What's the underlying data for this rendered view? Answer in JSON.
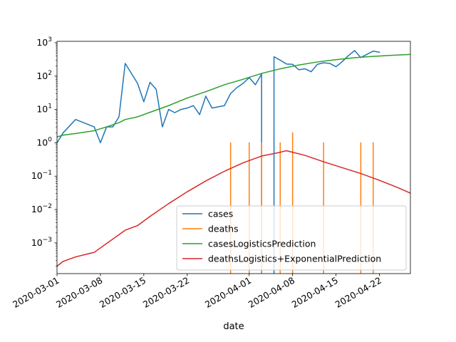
{
  "chart_data": {
    "type": "line",
    "xlabel": "date",
    "ylabel": "",
    "yscale": "log",
    "xlim": [
      "2020-03-01",
      "2020-04-27"
    ],
    "ylim": [
      0.00012,
      1100
    ],
    "x_ticks": [
      "2020-03-01",
      "2020-03-08",
      "2020-03-15",
      "2020-03-22",
      "2020-04-01",
      "2020-04-08",
      "2020-04-15",
      "2020-04-22"
    ],
    "y_ticks": [
      {
        "value": 0.001,
        "base": "10",
        "exp": "−3"
      },
      {
        "value": 0.01,
        "base": "10",
        "exp": "−2"
      },
      {
        "value": 0.1,
        "base": "10",
        "exp": "−1"
      },
      {
        "value": 1,
        "base": "10",
        "exp": "0"
      },
      {
        "value": 10,
        "base": "10",
        "exp": "1"
      },
      {
        "value": 100,
        "base": "10",
        "exp": "2"
      },
      {
        "value": 1000,
        "base": "10",
        "exp": "3"
      }
    ],
    "legend_position": "lower right",
    "series": [
      {
        "name": "cases",
        "color": "#1f77b4",
        "points": [
          [
            "2020-03-01",
            1
          ],
          [
            "2020-03-02",
            2
          ],
          [
            "2020-03-04",
            5
          ],
          [
            "2020-03-07",
            3
          ],
          [
            "2020-03-08",
            1
          ],
          [
            "2020-03-09",
            3
          ],
          [
            "2020-03-10",
            3
          ],
          [
            "2020-03-11",
            6
          ],
          [
            "2020-03-12",
            240
          ],
          [
            "2020-03-14",
            60
          ],
          [
            "2020-03-15",
            17
          ],
          [
            "2020-03-16",
            65
          ],
          [
            "2020-03-17",
            40
          ],
          [
            "2020-03-18",
            3
          ],
          [
            "2020-03-19",
            10
          ],
          [
            "2020-03-20",
            8
          ],
          [
            "2020-03-21",
            10
          ],
          [
            "2020-03-22",
            11
          ],
          [
            "2020-03-23",
            13
          ],
          [
            "2020-03-24",
            7
          ],
          [
            "2020-03-25",
            25
          ],
          [
            "2020-03-26",
            11
          ],
          [
            "2020-03-28",
            13
          ],
          [
            "2020-03-29",
            30
          ],
          [
            "2020-03-30",
            45
          ],
          [
            "2020-03-31",
            60
          ],
          [
            "2020-04-01",
            90
          ],
          [
            "2020-04-02",
            55
          ],
          [
            "2020-04-03",
            115
          ],
          [
            "2020-04-03",
            0.0001
          ],
          null,
          [
            "2020-04-05",
            0.0001
          ],
          [
            "2020-04-05",
            380
          ],
          [
            "2020-04-06",
            300
          ],
          [
            "2020-04-07",
            230
          ],
          [
            "2020-04-08",
            225
          ],
          [
            "2020-04-09",
            155
          ],
          [
            "2020-04-10",
            165
          ],
          [
            "2020-04-11",
            135
          ],
          [
            "2020-04-12",
            225
          ],
          [
            "2020-04-13",
            250
          ],
          [
            "2020-04-14",
            240
          ],
          [
            "2020-04-15",
            190
          ],
          [
            "2020-04-16",
            270
          ],
          [
            "2020-04-17",
            410
          ],
          [
            "2020-04-18",
            580
          ],
          [
            "2020-04-19",
            360
          ],
          [
            "2020-04-20",
            450
          ],
          [
            "2020-04-21",
            560
          ],
          [
            "2020-04-22",
            520
          ]
        ]
      },
      {
        "name": "deaths",
        "color": "#ff7f0e",
        "points": [
          [
            "2020-03-29",
            0.0001
          ],
          [
            "2020-03-29",
            1
          ],
          [
            "2020-03-29",
            0.0001
          ],
          null,
          [
            "2020-04-01",
            0.0001
          ],
          [
            "2020-04-01",
            1
          ],
          [
            "2020-04-01",
            0.0001
          ],
          null,
          [
            "2020-04-03",
            0.0001
          ],
          [
            "2020-04-03",
            1
          ],
          [
            "2020-04-03",
            0.0001
          ],
          null,
          [
            "2020-04-06",
            0.0001
          ],
          [
            "2020-04-06",
            1
          ],
          [
            "2020-04-06",
            0.0001
          ],
          null,
          [
            "2020-04-08",
            0.0001
          ],
          [
            "2020-04-08",
            2
          ],
          [
            "2020-04-08",
            0.0001
          ],
          null,
          [
            "2020-04-13",
            0.0001
          ],
          [
            "2020-04-13",
            1
          ],
          [
            "2020-04-13",
            0.0001
          ],
          null,
          [
            "2020-04-19",
            0.0001
          ],
          [
            "2020-04-19",
            1
          ],
          [
            "2020-04-19",
            0.0001
          ],
          null,
          [
            "2020-04-21",
            0.0001
          ],
          [
            "2020-04-21",
            1
          ],
          [
            "2020-04-21",
            0.0001
          ]
        ]
      },
      {
        "name": "casesLogisticsPrediction",
        "color": "#2ca02c",
        "points": [
          [
            "2020-03-01",
            1.5
          ],
          [
            "2020-03-02",
            1.7
          ],
          [
            "2020-03-04",
            1.9
          ],
          [
            "2020-03-07",
            2.3
          ],
          [
            "2020-03-09",
            3.0
          ],
          [
            "2020-03-11",
            4.0
          ],
          [
            "2020-03-12",
            5.0
          ],
          [
            "2020-03-14",
            6.0
          ],
          [
            "2020-03-16",
            8.2
          ],
          [
            "2020-03-19",
            13.0
          ],
          [
            "2020-03-22",
            22.0
          ],
          [
            "2020-03-25",
            34.0
          ],
          [
            "2020-03-28",
            55.0
          ],
          [
            "2020-03-31",
            80.0
          ],
          [
            "2020-04-03",
            120.0
          ],
          [
            "2020-04-06",
            165.0
          ],
          [
            "2020-04-09",
            215.0
          ],
          [
            "2020-04-12",
            265.0
          ],
          [
            "2020-04-15",
            310.0
          ],
          [
            "2020-04-18",
            355.0
          ],
          [
            "2020-04-21",
            390.0
          ],
          [
            "2020-04-24",
            420.0
          ],
          [
            "2020-04-27",
            445.0
          ]
        ]
      },
      {
        "name": "deathsLogistics+ExponentialPrediction",
        "color": "#d62728",
        "points": [
          [
            "2020-03-01",
            0.0002
          ],
          [
            "2020-03-02",
            0.00028
          ],
          [
            "2020-03-04",
            0.00038
          ],
          [
            "2020-03-07",
            0.00052
          ],
          [
            "2020-03-12",
            0.0024
          ],
          [
            "2020-03-14",
            0.0033
          ],
          [
            "2020-03-16",
            0.0062
          ],
          [
            "2020-03-19",
            0.015
          ],
          [
            "2020-03-22",
            0.034
          ],
          [
            "2020-03-25",
            0.072
          ],
          [
            "2020-03-28",
            0.14
          ],
          [
            "2020-03-31",
            0.25
          ],
          [
            "2020-04-03",
            0.4
          ],
          [
            "2020-04-06",
            0.52
          ],
          [
            "2020-04-07",
            0.58
          ],
          [
            "2020-04-10",
            0.42
          ],
          [
            "2020-04-13",
            0.27
          ],
          [
            "2020-04-16",
            0.18
          ],
          [
            "2020-04-19",
            0.12
          ],
          [
            "2020-04-22",
            0.075
          ],
          [
            "2020-04-25",
            0.045
          ],
          [
            "2020-04-27",
            0.031
          ]
        ]
      }
    ]
  }
}
